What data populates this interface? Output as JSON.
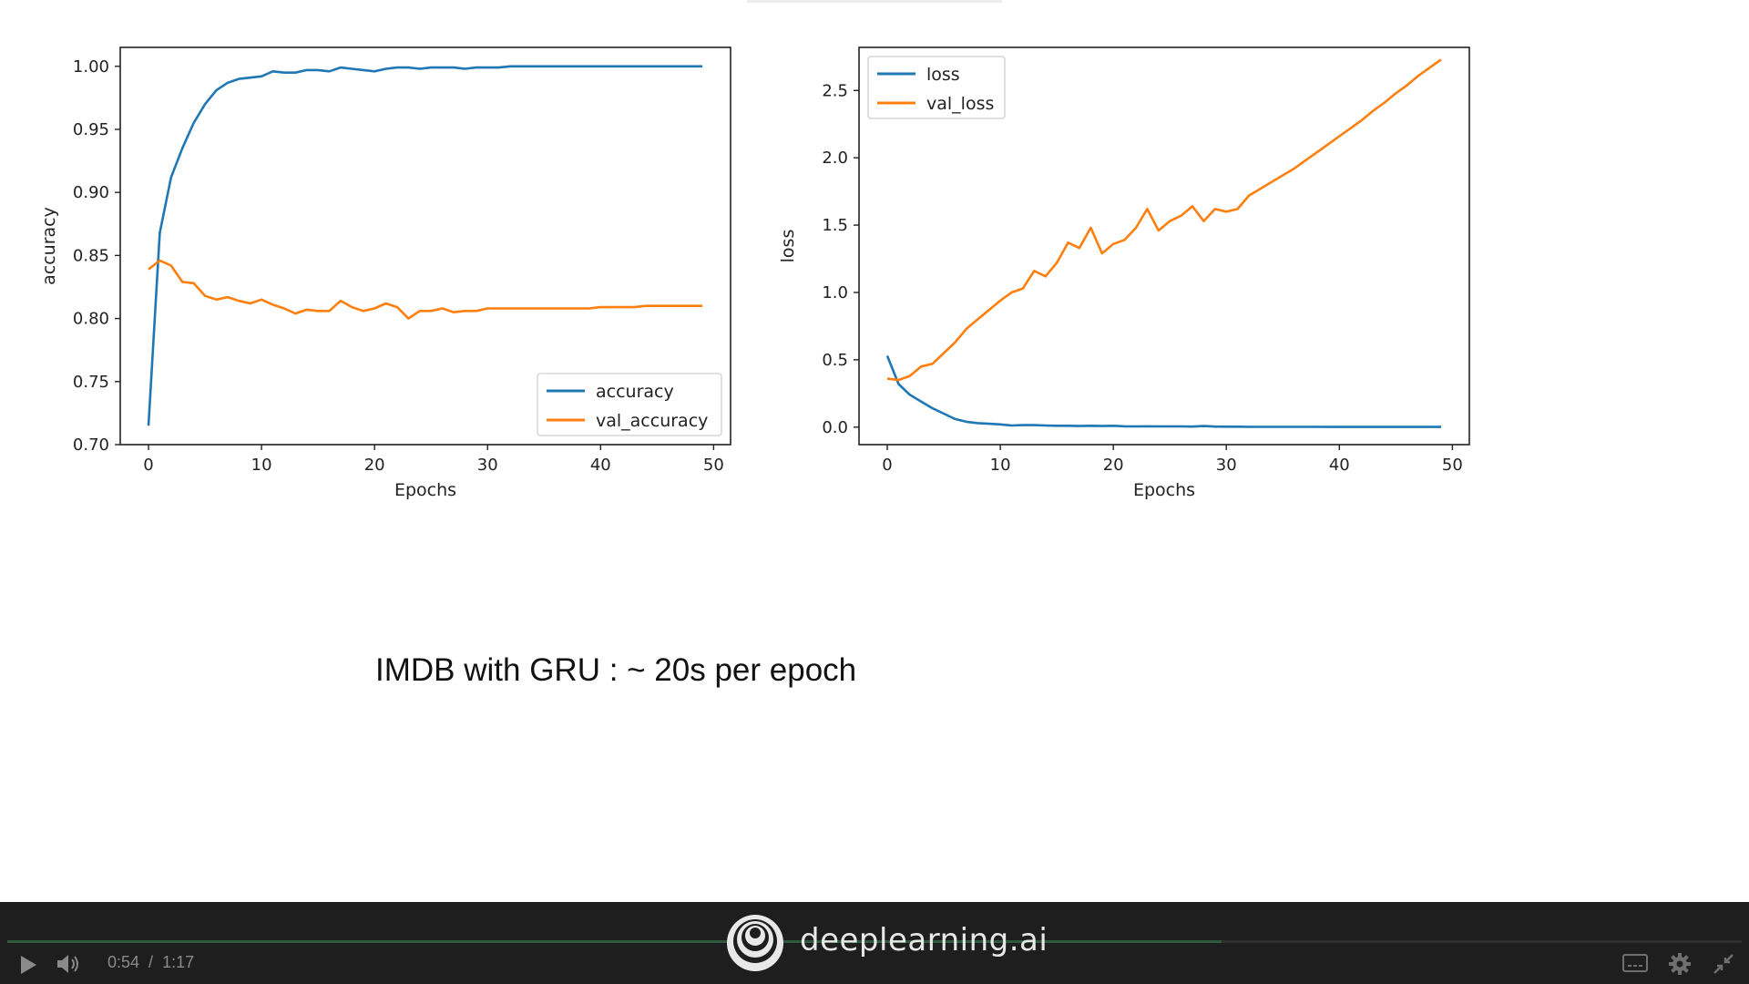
{
  "slide": {
    "caption": "IMDB with GRU : ~ 20s per epoch"
  },
  "player": {
    "current_time": "0:54",
    "separator": "/",
    "total_time": "1:17",
    "progress_fraction": 0.7,
    "brand_name": "deeplearning.ai",
    "play_icon": "play-icon",
    "volume_icon": "volume-icon",
    "captions_icon": "captions-icon",
    "settings_icon": "gear-icon",
    "fullscreen_icon": "exit-fullscreen-icon"
  },
  "colors": {
    "series_blue": "#1f77b4",
    "series_orange": "#ff7f0e",
    "player_bg": "#1e1e1e",
    "progress": "#2e5b3f"
  },
  "chart_data": [
    {
      "type": "line",
      "xlabel": "Epochs",
      "ylabel": "accuracy",
      "xlim": [
        -2.5,
        51.5
      ],
      "ylim": [
        0.7,
        1.015
      ],
      "xticks": [
        0,
        10,
        20,
        30,
        40,
        50
      ],
      "yticks": [
        0.7,
        0.75,
        0.8,
        0.85,
        0.9,
        0.95,
        1.0
      ],
      "ytick_labels": [
        "0.70",
        "0.75",
        "0.80",
        "0.85",
        "0.90",
        "0.95",
        "1.00"
      ],
      "legend_position": "lower-right",
      "grid": false,
      "series": [
        {
          "name": "accuracy",
          "color": "#1f77b4",
          "x": [
            0,
            1,
            2,
            3,
            4,
            5,
            6,
            7,
            8,
            9,
            10,
            11,
            12,
            13,
            14,
            15,
            16,
            17,
            18,
            19,
            20,
            21,
            22,
            23,
            24,
            25,
            26,
            27,
            28,
            29,
            30,
            31,
            32,
            33,
            34,
            35,
            36,
            37,
            38,
            39,
            40,
            41,
            42,
            43,
            44,
            45,
            46,
            47,
            48,
            49
          ],
          "values": [
            0.715,
            0.868,
            0.912,
            0.935,
            0.955,
            0.97,
            0.981,
            0.987,
            0.99,
            0.991,
            0.992,
            0.996,
            0.995,
            0.995,
            0.997,
            0.997,
            0.996,
            0.999,
            0.998,
            0.997,
            0.996,
            0.998,
            0.999,
            0.999,
            0.998,
            0.999,
            0.999,
            0.999,
            0.998,
            0.999,
            0.999,
            0.999,
            1.0,
            1.0,
            1.0,
            1.0,
            1.0,
            1.0,
            1.0,
            1.0,
            1.0,
            1.0,
            1.0,
            1.0,
            1.0,
            1.0,
            1.0,
            1.0,
            1.0,
            1.0
          ]
        },
        {
          "name": "val_accuracy",
          "color": "#ff7f0e",
          "x": [
            0,
            1,
            2,
            3,
            4,
            5,
            6,
            7,
            8,
            9,
            10,
            11,
            12,
            13,
            14,
            15,
            16,
            17,
            18,
            19,
            20,
            21,
            22,
            23,
            24,
            25,
            26,
            27,
            28,
            29,
            30,
            31,
            32,
            33,
            34,
            35,
            36,
            37,
            38,
            39,
            40,
            41,
            42,
            43,
            44,
            45,
            46,
            47,
            48,
            49
          ],
          "values": [
            0.839,
            0.846,
            0.842,
            0.829,
            0.828,
            0.818,
            0.815,
            0.817,
            0.814,
            0.812,
            0.815,
            0.811,
            0.808,
            0.804,
            0.807,
            0.806,
            0.806,
            0.814,
            0.809,
            0.806,
            0.808,
            0.812,
            0.809,
            0.8,
            0.806,
            0.806,
            0.808,
            0.805,
            0.806,
            0.806,
            0.808,
            0.808,
            0.808,
            0.808,
            0.808,
            0.808,
            0.808,
            0.808,
            0.808,
            0.808,
            0.809,
            0.809,
            0.809,
            0.809,
            0.81,
            0.81,
            0.81,
            0.81,
            0.81,
            0.81
          ]
        }
      ]
    },
    {
      "type": "line",
      "xlabel": "Epochs",
      "ylabel": "loss",
      "xlim": [
        -2.5,
        51.5
      ],
      "ylim": [
        -0.13,
        2.82
      ],
      "xticks": [
        0,
        10,
        20,
        30,
        40,
        50
      ],
      "yticks": [
        0.0,
        0.5,
        1.0,
        1.5,
        2.0,
        2.5
      ],
      "ytick_labels": [
        "0.0",
        "0.5",
        "1.0",
        "1.5",
        "2.0",
        "2.5"
      ],
      "legend_position": "upper-left",
      "grid": false,
      "series": [
        {
          "name": "loss",
          "color": "#1f77b4",
          "x": [
            0,
            1,
            2,
            3,
            4,
            5,
            6,
            7,
            8,
            9,
            10,
            11,
            12,
            13,
            14,
            15,
            16,
            17,
            18,
            19,
            20,
            21,
            22,
            23,
            24,
            25,
            26,
            27,
            28,
            29,
            30,
            31,
            32,
            33,
            34,
            35,
            36,
            37,
            38,
            39,
            40,
            41,
            42,
            43,
            44,
            45,
            46,
            47,
            48,
            49
          ],
          "values": [
            0.53,
            0.32,
            0.24,
            0.19,
            0.14,
            0.1,
            0.06,
            0.04,
            0.03,
            0.025,
            0.02,
            0.012,
            0.015,
            0.015,
            0.012,
            0.01,
            0.01,
            0.008,
            0.01,
            0.008,
            0.01,
            0.006,
            0.005,
            0.006,
            0.005,
            0.005,
            0.005,
            0.004,
            0.008,
            0.004,
            0.003,
            0.003,
            0.002,
            0.002,
            0.002,
            0.002,
            0.002,
            0.002,
            0.002,
            0.001,
            0.001,
            0.001,
            0.001,
            0.001,
            0.001,
            0.001,
            0.001,
            0.001,
            0.001,
            0.001
          ]
        },
        {
          "name": "val_loss",
          "color": "#ff7f0e",
          "x": [
            0,
            1,
            2,
            3,
            4,
            5,
            6,
            7,
            8,
            9,
            10,
            11,
            12,
            13,
            14,
            15,
            16,
            17,
            18,
            19,
            20,
            21,
            22,
            23,
            24,
            25,
            26,
            27,
            28,
            29,
            30,
            31,
            32,
            33,
            34,
            35,
            36,
            37,
            38,
            39,
            40,
            41,
            42,
            43,
            44,
            45,
            46,
            47,
            48,
            49
          ],
          "values": [
            0.36,
            0.35,
            0.38,
            0.45,
            0.47,
            0.55,
            0.63,
            0.73,
            0.8,
            0.87,
            0.94,
            1.0,
            1.03,
            1.16,
            1.12,
            1.22,
            1.37,
            1.33,
            1.48,
            1.29,
            1.36,
            1.39,
            1.48,
            1.62,
            1.46,
            1.53,
            1.57,
            1.64,
            1.53,
            1.62,
            1.6,
            1.62,
            1.72,
            1.77,
            1.82,
            1.87,
            1.92,
            1.98,
            2.04,
            2.1,
            2.16,
            2.22,
            2.28,
            2.35,
            2.41,
            2.48,
            2.54,
            2.61,
            2.67,
            2.73
          ]
        }
      ]
    }
  ]
}
